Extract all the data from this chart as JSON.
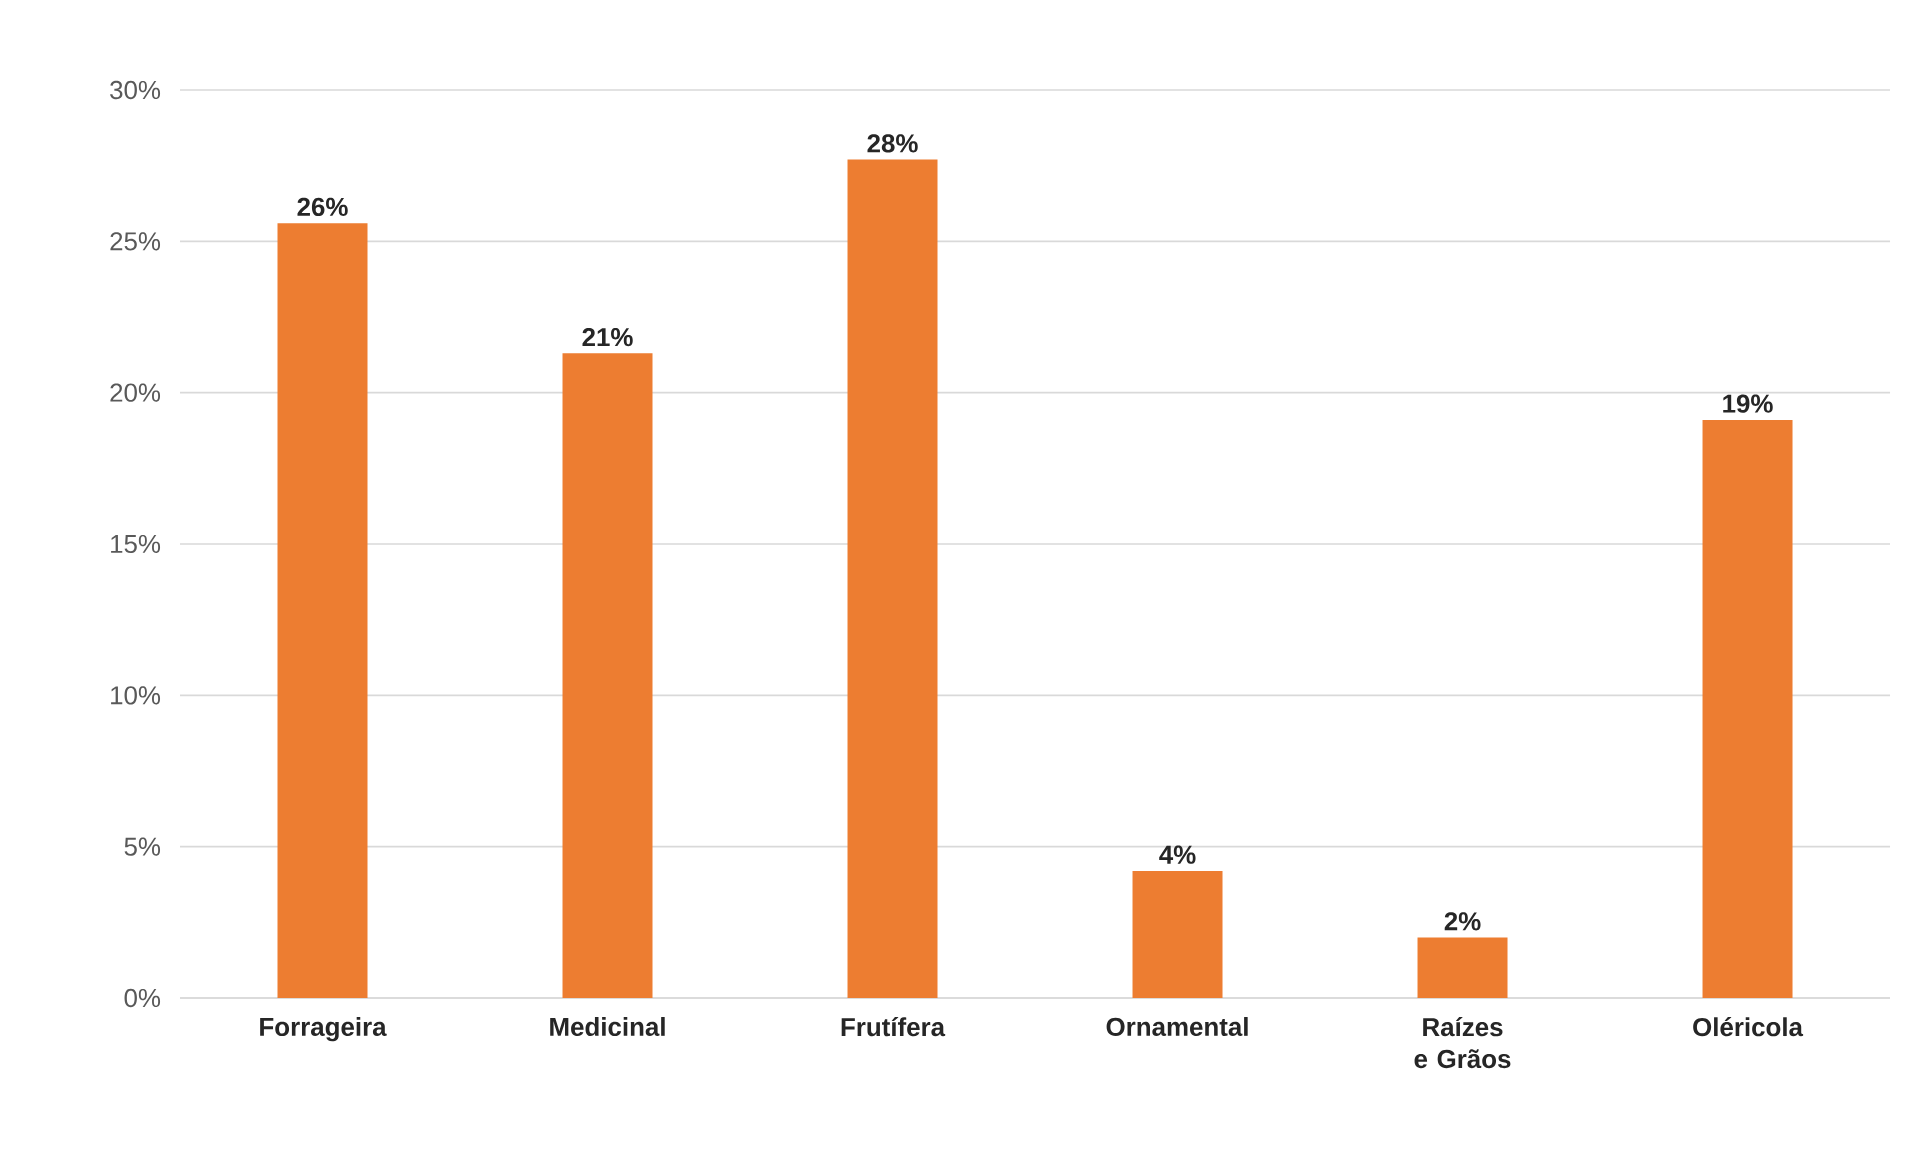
{
  "chart_data": {
    "type": "bar",
    "categories": [
      "Forrageira",
      "Medicinal",
      "Frutífera",
      "Ornamental",
      "Raízes e Grãos",
      "Oléricola"
    ],
    "values": [
      25.6,
      21.3,
      27.7,
      4.2,
      2.0,
      19.1
    ],
    "value_labels": [
      "26%",
      "21%",
      "28%",
      "4%",
      "2%",
      "19%"
    ],
    "color": "#ed7d31",
    "ylim": [
      0,
      30
    ],
    "yticks": [
      {
        "value": 0,
        "label": "0%"
      },
      {
        "value": 5,
        "label": "5%"
      },
      {
        "value": 10,
        "label": "10%"
      },
      {
        "value": 15,
        "label": "15%"
      },
      {
        "value": 20,
        "label": "20%"
      },
      {
        "value": 25,
        "label": "25%"
      },
      {
        "value": 30,
        "label": "30%"
      }
    ],
    "grid": "y"
  }
}
